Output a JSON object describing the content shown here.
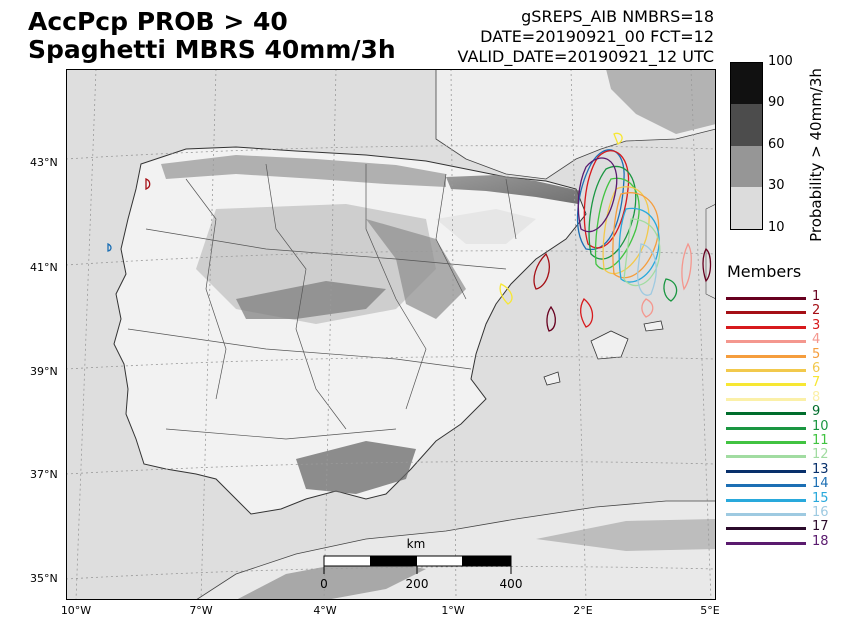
{
  "title": {
    "line1": "AccPcp PROB > 40",
    "line2": "Spaghetti MBRS 40mm/3h"
  },
  "meta": {
    "line1": "gSREPS_AIB     NMBRS=18",
    "line2": "DATE=20190921_00     FCT=12",
    "line3": "VALID_DATE=20190921_12 UTC"
  },
  "colorbar": {
    "label": "Probability > 40mm/3h",
    "ticks": [
      "100",
      "90",
      "60",
      "30",
      "10"
    ],
    "colors": [
      "#111111",
      "#4c4c4c",
      "#969696",
      "#dcdcdc"
    ]
  },
  "members": {
    "title": "Members",
    "items": [
      {
        "label": "1",
        "color": "#67001f"
      },
      {
        "label": "2",
        "color": "#a50f15"
      },
      {
        "label": "3",
        "color": "#d7191c"
      },
      {
        "label": "4",
        "color": "#f4978e"
      },
      {
        "label": "5",
        "color": "#f59d3d"
      },
      {
        "label": "6",
        "color": "#f2c94c"
      },
      {
        "label": "7",
        "color": "#f7e733"
      },
      {
        "label": "8",
        "color": "#fbf0a8"
      },
      {
        "label": "9",
        "color": "#006d2c"
      },
      {
        "label": "10",
        "color": "#1a9641"
      },
      {
        "label": "11",
        "color": "#41c341"
      },
      {
        "label": "12",
        "color": "#a1dca1"
      },
      {
        "label": "13",
        "color": "#08306b"
      },
      {
        "label": "14",
        "color": "#1c6fb4"
      },
      {
        "label": "15",
        "color": "#29a9dc"
      },
      {
        "label": "16",
        "color": "#9ecae1"
      },
      {
        "label": "17",
        "color": "#2b0b2b"
      },
      {
        "label": "18",
        "color": "#5a1a6e"
      }
    ]
  },
  "map": {
    "lat_labels": [
      "43°N",
      "41°N",
      "39°N",
      "37°N",
      "35°N"
    ],
    "lon_labels": [
      "10°W",
      "7°W",
      "4°W",
      "1°W",
      "2°E",
      "5°E"
    ],
    "scalebar": {
      "unit": "km",
      "ticks": [
        "0",
        "200",
        "400"
      ]
    }
  }
}
